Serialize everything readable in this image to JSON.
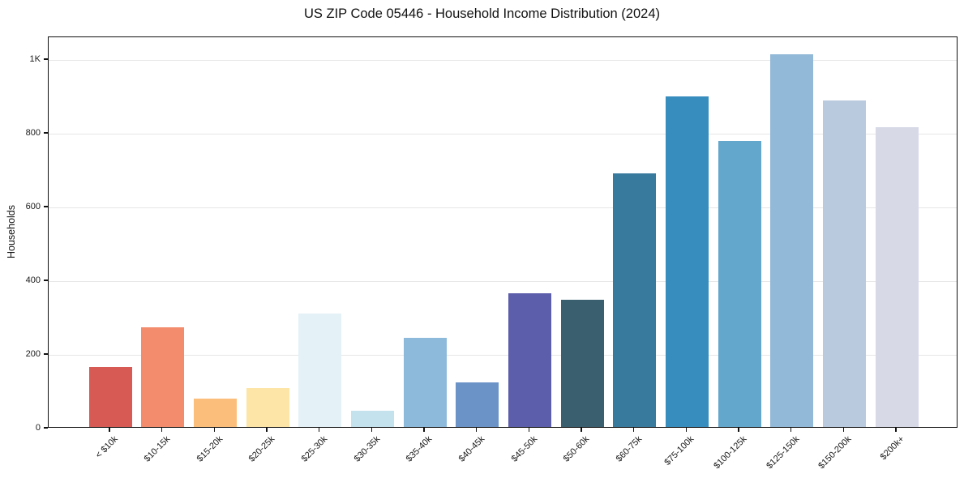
{
  "chart_data": {
    "type": "bar",
    "title": "US ZIP Code 05446 - Household Income Distribution (2024)",
    "xlabel": "",
    "ylabel": "Households",
    "categories": [
      "< $10k",
      "$10-15k",
      "$15-20k",
      "$20-25k",
      "$25-30k",
      "$30-35k",
      "$35-40k",
      "$40-45k",
      "$45-50k",
      "$50-60k",
      "$60-75k",
      "$75-100k",
      "$100-125k",
      "$125-150k",
      "$150-200k",
      "$200k+"
    ],
    "values": [
      162,
      270,
      76,
      106,
      307,
      45,
      241,
      120,
      363,
      346,
      688,
      897,
      776,
      1012,
      886,
      813
    ],
    "bar_colors": [
      "#d75b54",
      "#f38b6d",
      "#fcbe7b",
      "#fde5a7",
      "#e4f1f7",
      "#c4e1ee",
      "#8db9db",
      "#6b93c8",
      "#5c5dab",
      "#3a606f",
      "#38799e",
      "#378dbd",
      "#64a7cd",
      "#92b9d8",
      "#b9cadf",
      "#d7d9e6"
    ],
    "ylim": [
      0,
      1062
    ],
    "yticks": [
      {
        "value": 0,
        "label": "0"
      },
      {
        "value": 200,
        "label": "200"
      },
      {
        "value": 400,
        "label": "400"
      },
      {
        "value": 600,
        "label": "600"
      },
      {
        "value": 800,
        "label": "800"
      },
      {
        "value": 1000,
        "label": "1K"
      }
    ],
    "xtick_rotation": 45,
    "grid": "horizontal",
    "gridline_color": "#e7e7e7",
    "axis_color": "#111111",
    "background_color": "#ffffff",
    "legend": "none"
  }
}
